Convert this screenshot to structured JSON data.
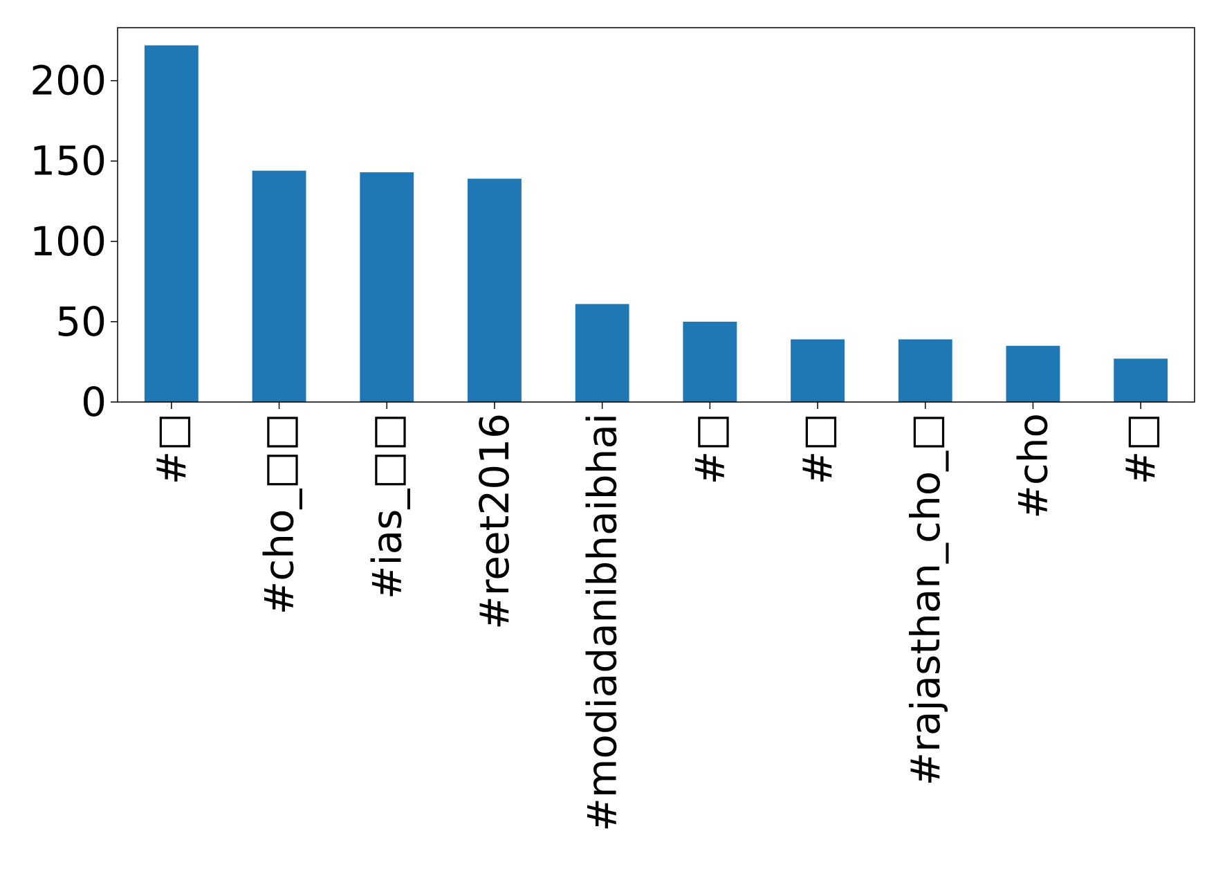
{
  "chart_data": {
    "type": "bar",
    "title": "",
    "xlabel": "",
    "ylabel": "",
    "categories": [
      "#□",
      "#cho_□□",
      "#ias_□□",
      "#reet2016",
      "#modiadanibhaibhai",
      "#□",
      "#□",
      "#rajasthan_cho_□",
      "#cho",
      "#□"
    ],
    "values": [
      222,
      144,
      143,
      139,
      61,
      50,
      39,
      39,
      35,
      27
    ],
    "ylim": [
      0,
      233
    ],
    "yticks": [
      0,
      50,
      100,
      150,
      200
    ],
    "ytick_labels": [
      "0",
      "50",
      "100",
      "150",
      "200"
    ],
    "bar_color": "#1f77b4",
    "grid": false,
    "legend": "none"
  }
}
